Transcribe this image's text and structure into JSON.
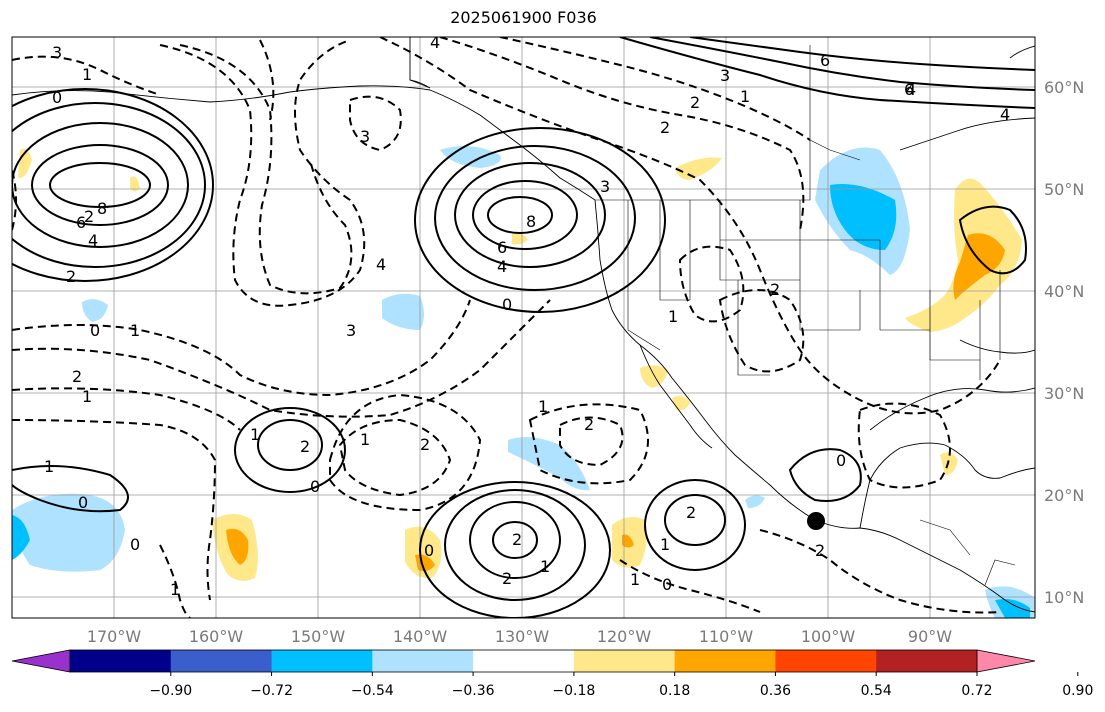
{
  "title": "2025061900 F036",
  "map": {
    "lat_labels": [
      "60°N",
      "50°N",
      "40°N",
      "30°N",
      "20°N",
      "10°N"
    ],
    "lon_labels": [
      "170°W",
      "160°W",
      "150°W",
      "140°W",
      "130°W",
      "120°W",
      "110°W",
      "100°W",
      "90°W"
    ],
    "marker": "black-dot"
  },
  "colorbar": {
    "colors": [
      "#9932cc",
      "#00008b",
      "#3a5fcd",
      "#00bfff",
      "#aee2ff",
      "#ffffff",
      "#ffe88a",
      "#ffa500",
      "#ff4500",
      "#b22222",
      "#ff88aa"
    ],
    "tick_labels": [
      "−0.90",
      "−0.72",
      "−0.54",
      "−0.36",
      "−0.18",
      "0.18",
      "0.36",
      "0.54",
      "0.72",
      "0.90"
    ]
  },
  "contour_labels": [
    "3",
    "4",
    "1",
    "0",
    "2",
    "8",
    "6",
    "4",
    "2",
    "0",
    "1",
    "4",
    "3",
    "6",
    "8",
    "6",
    "4",
    "2",
    "3",
    "1",
    "0",
    "1",
    "2",
    "6",
    "4",
    "0",
    "2",
    "1",
    "2",
    "1",
    "1",
    "2",
    "0",
    "1",
    "1",
    "2",
    "2",
    "2",
    "1",
    "0",
    "2",
    "1",
    "0",
    "1",
    "0",
    "0",
    "2",
    "3",
    "3",
    "1",
    "2",
    "4"
  ]
}
